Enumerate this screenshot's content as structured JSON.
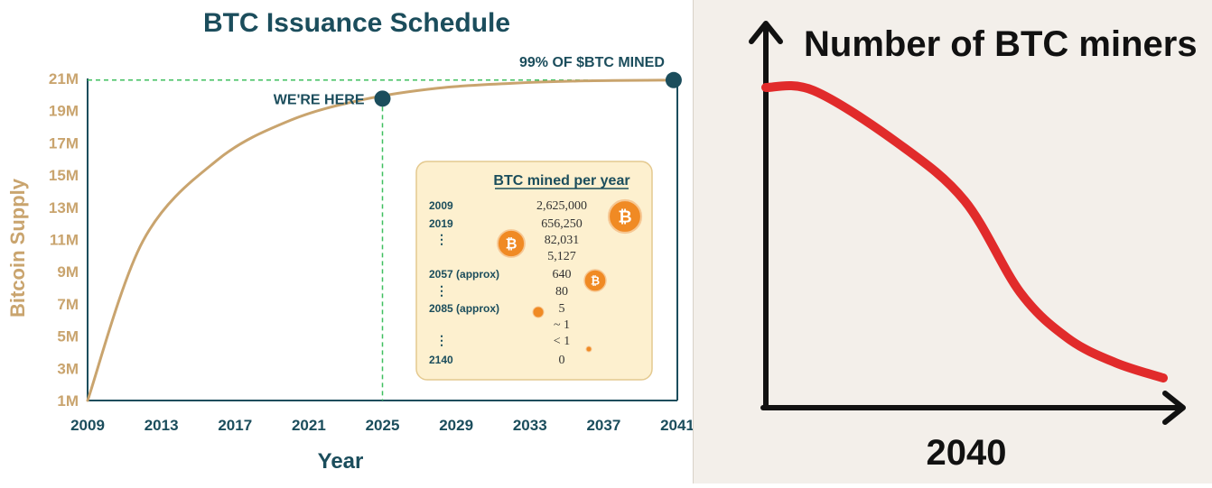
{
  "chart_data": [
    {
      "type": "line",
      "title": "BTC Issuance Schedule",
      "xlabel": "Year",
      "ylabel": "Bitcoin Supply",
      "xlim": [
        2009,
        2041
      ],
      "ylim": [
        1,
        21
      ],
      "x_ticks": [
        "2009",
        "2013",
        "2017",
        "2021",
        "2025",
        "2029",
        "2033",
        "2037",
        "2041"
      ],
      "y_ticks": [
        "1M",
        "3M",
        "5M",
        "7M",
        "9M",
        "11M",
        "13M",
        "15M",
        "17M",
        "19M",
        "21M"
      ],
      "series": [
        {
          "x": [
            2009,
            2012,
            2016,
            2020,
            2024,
            2028,
            2032,
            2036,
            2041
          ],
          "y": [
            1,
            10.9,
            15.9,
            18.4,
            19.7,
            20.4,
            20.7,
            20.85,
            20.9
          ]
        }
      ],
      "colors": {
        "line": "#c9a46e",
        "accent": "#1b4d5c",
        "guide": "#3fbf5f"
      },
      "grid": false,
      "annotations": [
        {
          "label": "WE'RE HERE",
          "x": 2025,
          "y": 19.75
        },
        {
          "label": "99% OF $BTC MINED",
          "x": 2040.8,
          "y": 20.9
        }
      ],
      "inset_table": {
        "title": "BTC mined per year",
        "rows": [
          {
            "year": "2009",
            "amount": "2,625,000",
            "coin_size": 36
          },
          {
            "year": "2019",
            "amount": "656,250",
            "coin_size": 0
          },
          {
            "year": "⋮",
            "amount": "82,031",
            "coin_size": 30
          },
          {
            "year": "",
            "amount": "5,127",
            "coin_size": 0
          },
          {
            "year": "2057 (approx)",
            "amount": "640",
            "coin_size": 24
          },
          {
            "year": "⋮",
            "amount": "80",
            "coin_size": 0
          },
          {
            "year": "2085 (approx)",
            "amount": "5",
            "coin_size": 12
          },
          {
            "year": "",
            "amount": "~ 1",
            "coin_size": 0
          },
          {
            "year": "⋮",
            "amount": "< 1",
            "coin_size": 6
          },
          {
            "year": "2140",
            "amount": "0",
            "coin_size": 0
          }
        ]
      }
    },
    {
      "type": "line",
      "title": "Number of BTC miners",
      "xlabel": "2040",
      "ylabel": "",
      "xlim": [
        0,
        100
      ],
      "ylim": [
        0,
        100
      ],
      "series": [
        {
          "x": [
            0,
            12,
            33,
            50,
            64,
            76,
            88,
            100
          ],
          "y": [
            100,
            99,
            82,
            63,
            33,
            18,
            10,
            5
          ]
        }
      ],
      "colors": {
        "line": "#e12b2b",
        "axes": "#111111",
        "background": "#f3efea"
      },
      "grid": false
    }
  ]
}
